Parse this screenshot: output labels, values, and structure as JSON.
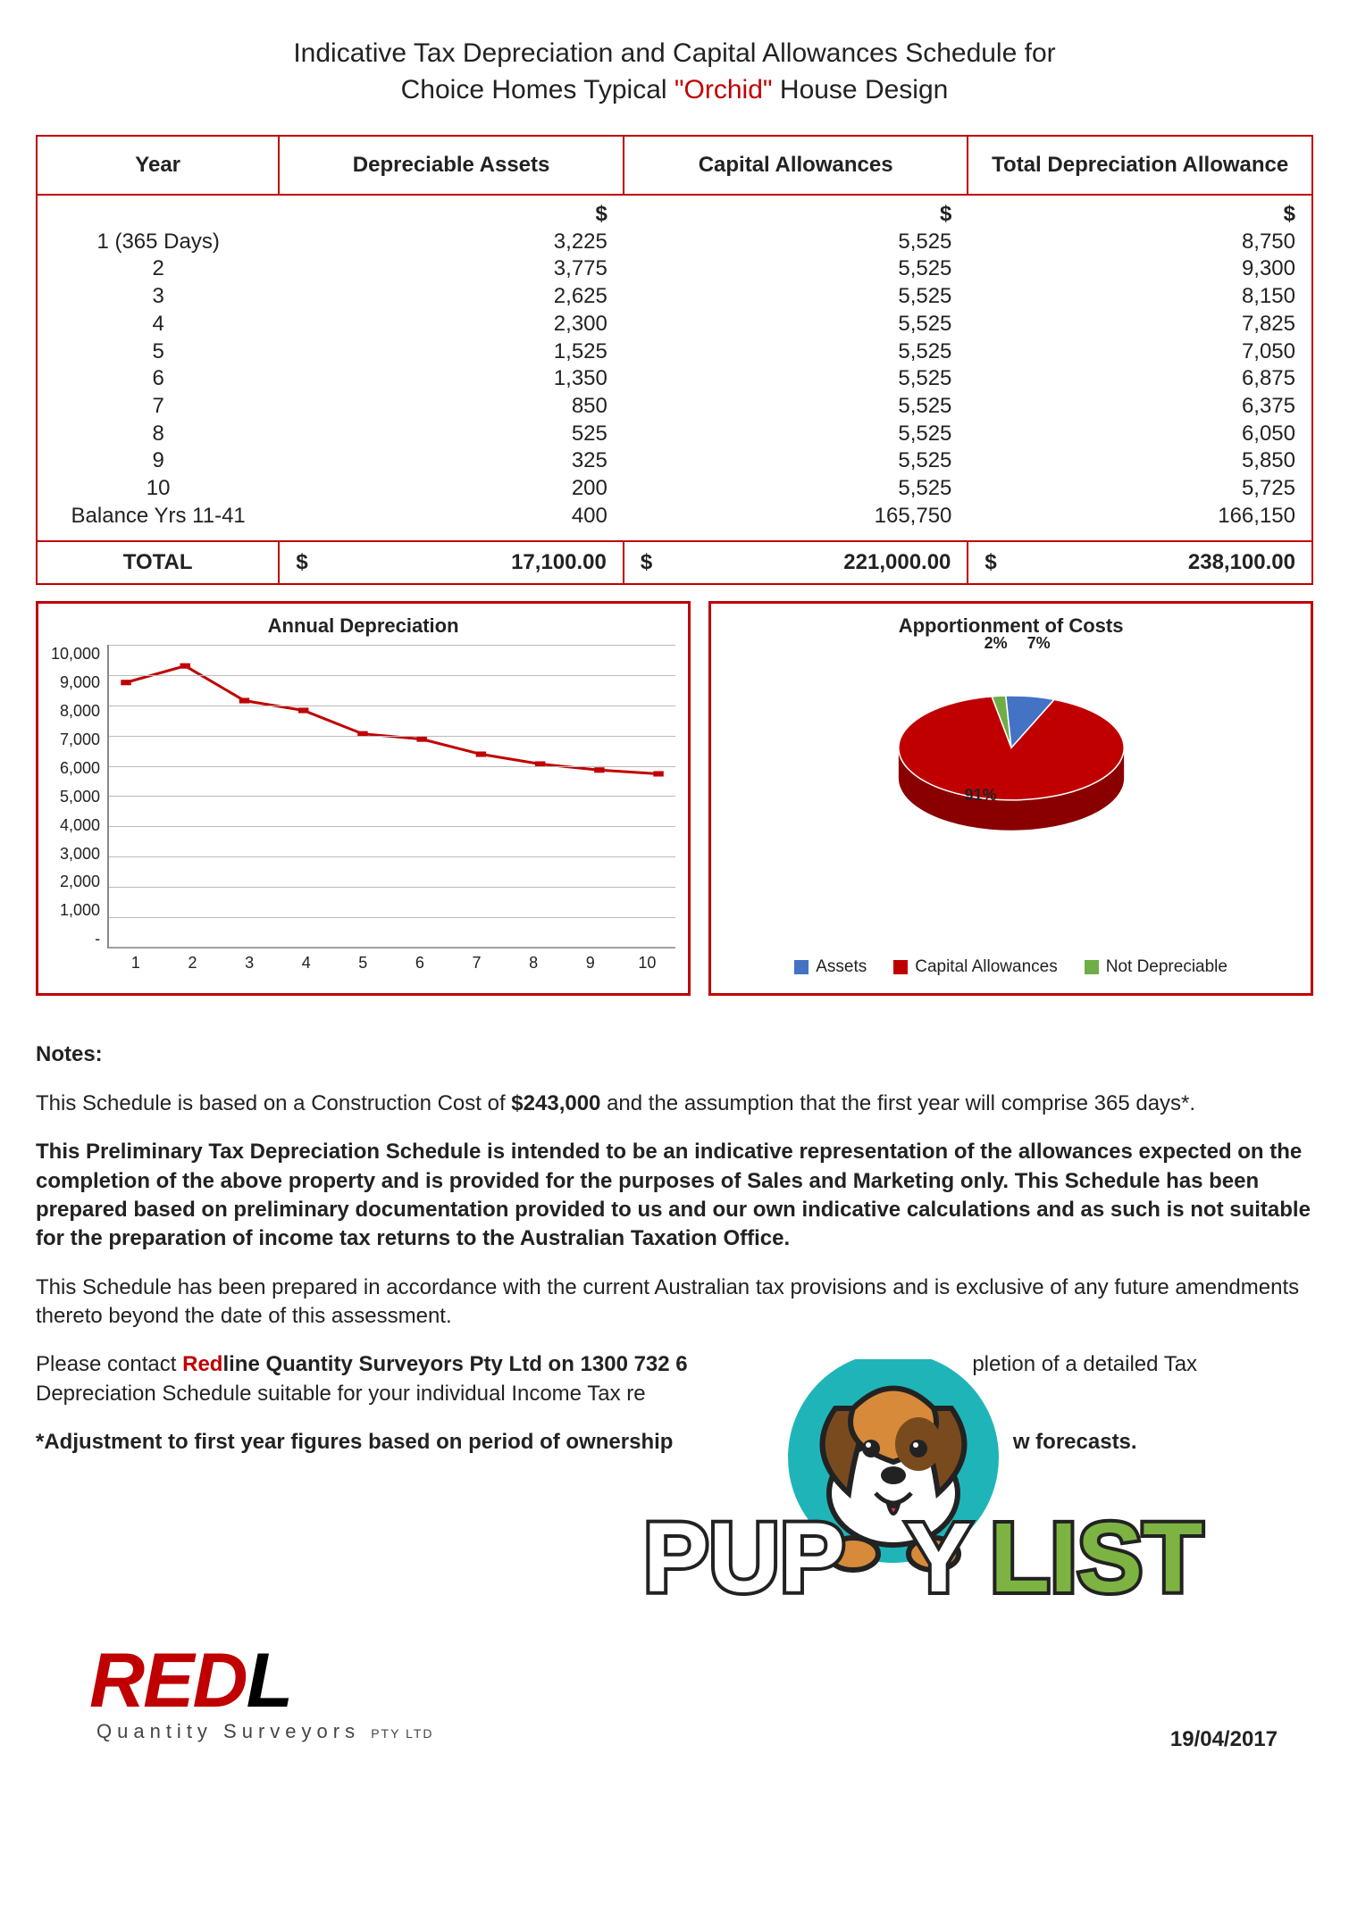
{
  "title": {
    "line1": "Indicative Tax Depreciation and Capital Allowances Schedule for",
    "line2_prefix": "Choice Homes Typical ",
    "line2_highlight": "\"Orchid\"",
    "line2_suffix": " House Design"
  },
  "table": {
    "columns": [
      "Year",
      "Depreciable Assets",
      "Capital Allowances",
      "Total Depreciation Allowance"
    ],
    "currency_symbol": "$",
    "rows": [
      {
        "year": "1 (365 Days)",
        "assets": "3,225",
        "capital": "5,525",
        "total": "8,750"
      },
      {
        "year": "2",
        "assets": "3,775",
        "capital": "5,525",
        "total": "9,300"
      },
      {
        "year": "3",
        "assets": "2,625",
        "capital": "5,525",
        "total": "8,150"
      },
      {
        "year": "4",
        "assets": "2,300",
        "capital": "5,525",
        "total": "7,825"
      },
      {
        "year": "5",
        "assets": "1,525",
        "capital": "5,525",
        "total": "7,050"
      },
      {
        "year": "6",
        "assets": "1,350",
        "capital": "5,525",
        "total": "6,875"
      },
      {
        "year": "7",
        "assets": "850",
        "capital": "5,525",
        "total": "6,375"
      },
      {
        "year": "8",
        "assets": "525",
        "capital": "5,525",
        "total": "6,050"
      },
      {
        "year": "9",
        "assets": "325",
        "capital": "5,525",
        "total": "5,850"
      },
      {
        "year": "10",
        "assets": "200",
        "capital": "5,525",
        "total": "5,725"
      },
      {
        "year": "Balance Yrs 11-41",
        "assets": "400",
        "capital": "165,750",
        "total": "166,150"
      }
    ],
    "total_label": "TOTAL",
    "totals": {
      "assets": "17,100.00",
      "capital": "221,000.00",
      "total": "238,100.00"
    }
  },
  "line_chart": {
    "title": "Annual Depreciation",
    "type": "line",
    "x_values": [
      1,
      2,
      3,
      4,
      5,
      6,
      7,
      8,
      9,
      10
    ],
    "y_values": [
      8750,
      9300,
      8150,
      7825,
      7050,
      6875,
      6375,
      6050,
      5850,
      5725
    ],
    "y_ticks": [
      "10,000",
      "9,000",
      "8,000",
      "7,000",
      "6,000",
      "5,000",
      "4,000",
      "3,000",
      "2,000",
      "1,000",
      "-"
    ],
    "ylim": [
      0,
      10000
    ],
    "line_color": "#c00000",
    "line_width": 3,
    "grid_color": "#bbbbbb",
    "axis_color": "#888888",
    "tick_fontsize": 18,
    "title_fontsize": 22
  },
  "pie_chart": {
    "title": "Apportionment of Costs",
    "type": "pie",
    "slices": [
      {
        "label": "Assets",
        "pct": 7,
        "color": "#4472c4"
      },
      {
        "label": "Capital Allowances",
        "pct": 91,
        "color": "#c00000"
      },
      {
        "label": "Not Depreciable",
        "pct": 2,
        "color": "#70ad47"
      }
    ],
    "label_fontsize": 18,
    "legend_fontsize": 19
  },
  "notes": {
    "heading": "Notes:",
    "p1_a": "This Schedule is based on a Construction Cost of ",
    "p1_bold": "$243,000",
    "p1_b": " and the assumption that the first year will comprise 365 days*.",
    "p2": "This Preliminary Tax Depreciation Schedule is intended to be an indicative representation of the allowances expected on the completion of the above property and is provided for the purposes of Sales and Marketing only.  This Schedule has been prepared based on preliminary documentation provided to us and our own indicative calculations and as such is not suitable for the preparation of income tax returns to the Australian Taxation Office.",
    "p3": "This Schedule has been prepared in accordance with the current Australian tax provisions and is exclusive of any future amendments thereto beyond the date of this assessment.",
    "p4_a": "Please contact ",
    "p4_red": "Red",
    "p4_b": "line Quantity Surveyors Pty Ltd on 1300 732 6",
    "p4_c": "pletion of a detailed Tax Depreciation Schedule suitable for your individual Income Tax re",
    "p5": "*Adjustment to first year figures based on period of ownership",
    "p5_b": "w forecasts."
  },
  "footer": {
    "logo_red": "RED",
    "logo_black": "L",
    "sub": "Quantity Surveyors",
    "pty": "PTY LTD",
    "date": "19/04/2017"
  },
  "overlay": {
    "text_white": "PUP",
    "text_white2": "Y",
    "text_green": "LIST",
    "circle_color": "#1fb5b8",
    "green": "#7cb342",
    "dog_colors": {
      "body": "#d68a3a",
      "ear": "#7a4a1f",
      "muzzle": "#ffffff",
      "tongue": "#e43b4e",
      "nose": "#222"
    }
  },
  "colors": {
    "accent": "#c00000",
    "text": "#222222",
    "background": "#ffffff"
  }
}
